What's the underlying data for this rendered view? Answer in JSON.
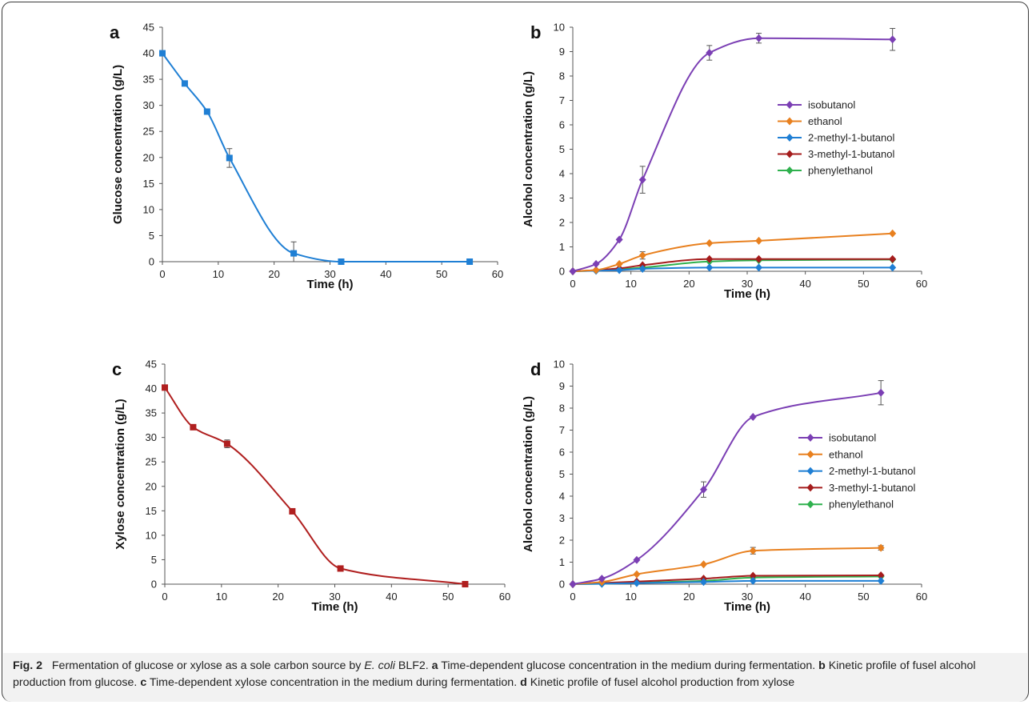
{
  "chart_data": [
    {
      "panel": "a",
      "type": "line",
      "xlabel": "Time (h)",
      "ylabel": "Glucose concentration (g/L)",
      "xlim": [
        0,
        60
      ],
      "xticks": [
        0,
        10,
        20,
        30,
        40,
        50,
        60
      ],
      "ylim": [
        0,
        45
      ],
      "yticks": [
        0,
        5,
        10,
        15,
        20,
        25,
        30,
        35,
        40,
        45
      ],
      "series": [
        {
          "color": "#1f7fd4",
          "marker": "square",
          "x": [
            0,
            4,
            8,
            12,
            23.5,
            32,
            55
          ],
          "y": [
            40,
            34.2,
            28.8,
            19.9,
            1.6,
            0,
            0
          ],
          "err": [
            0,
            0,
            0,
            1.8,
            2.2,
            0,
            0
          ]
        }
      ]
    },
    {
      "panel": "b",
      "type": "line",
      "xlabel": "Time (h)",
      "ylabel": "Alcohol concentration (g/L)",
      "xlim": [
        0,
        60
      ],
      "xticks": [
        0,
        10,
        20,
        30,
        40,
        50,
        60
      ],
      "ylim": [
        0,
        10
      ],
      "yticks": [
        0,
        1,
        2,
        3,
        4,
        5,
        6,
        7,
        8,
        9,
        10
      ],
      "legend_position": "right",
      "series": [
        {
          "name": "isobutanol",
          "color": "#7b3fb4",
          "x": [
            0,
            4,
            8,
            12,
            23.5,
            32,
            55
          ],
          "y": [
            0,
            0.3,
            1.3,
            3.75,
            8.95,
            9.55,
            9.5
          ],
          "err": [
            0,
            0,
            0,
            0.55,
            0.3,
            0.2,
            0.45
          ]
        },
        {
          "name": "ethanol",
          "color": "#e8801f",
          "x": [
            0,
            4,
            8,
            12,
            23.5,
            32,
            55
          ],
          "y": [
            0,
            0.05,
            0.3,
            0.65,
            1.15,
            1.25,
            1.55
          ],
          "err": [
            0,
            0,
            0,
            0.15,
            0,
            0,
            0
          ]
        },
        {
          "name": "2-methyl-1-butanol",
          "color": "#1f7fd4",
          "x": [
            0,
            4,
            8,
            12,
            23.5,
            32,
            55
          ],
          "y": [
            0,
            0.02,
            0.05,
            0.1,
            0.15,
            0.15,
            0.15
          ],
          "err": [
            0,
            0,
            0,
            0,
            0,
            0,
            0
          ]
        },
        {
          "name": "3-methyl-1-butanol",
          "color": "#a51c1c",
          "x": [
            0,
            4,
            8,
            12,
            23.5,
            32,
            55
          ],
          "y": [
            0,
            0.05,
            0.12,
            0.25,
            0.5,
            0.5,
            0.5
          ],
          "err": [
            0,
            0,
            0,
            0,
            0,
            0,
            0
          ]
        },
        {
          "name": "phenylethanol",
          "color": "#2fb14e",
          "x": [
            0,
            4,
            8,
            12,
            23.5,
            32,
            55
          ],
          "y": [
            0,
            0.03,
            0.08,
            0.15,
            0.4,
            0.45,
            0.48
          ],
          "err": [
            0,
            0,
            0,
            0,
            0,
            0,
            0
          ]
        }
      ]
    },
    {
      "panel": "c",
      "type": "line",
      "xlabel": "Time (h)",
      "ylabel": "Xylose concentration (g/L)",
      "xlim": [
        0,
        60
      ],
      "xticks": [
        0,
        10,
        20,
        30,
        40,
        50,
        60
      ],
      "ylim": [
        0,
        45
      ],
      "yticks": [
        0,
        5,
        10,
        15,
        20,
        25,
        30,
        35,
        40,
        45
      ],
      "series": [
        {
          "color": "#b01f1f",
          "marker": "square",
          "x": [
            0,
            5,
            11,
            22.5,
            31,
            53
          ],
          "y": [
            40.2,
            32.1,
            28.7,
            14.9,
            3.2,
            0
          ],
          "err": [
            0,
            0,
            0.8,
            0,
            0,
            0
          ]
        }
      ]
    },
    {
      "panel": "d",
      "type": "line",
      "xlabel": "Time (h)",
      "ylabel": "Alcohol concentration (g/L)",
      "xlim": [
        0,
        60
      ],
      "xticks": [
        0,
        10,
        20,
        30,
        40,
        50,
        60
      ],
      "ylim": [
        0,
        10
      ],
      "yticks": [
        0,
        1,
        2,
        3,
        4,
        5,
        6,
        7,
        8,
        9,
        10
      ],
      "legend_position": "right",
      "series": [
        {
          "name": "isobutanol",
          "color": "#7b3fb4",
          "x": [
            0,
            5,
            11,
            22.5,
            31,
            53
          ],
          "y": [
            0,
            0.25,
            1.1,
            4.3,
            7.6,
            8.7
          ],
          "err": [
            0,
            0,
            0,
            0.35,
            0,
            0.55
          ]
        },
        {
          "name": "ethanol",
          "color": "#e8801f",
          "x": [
            0,
            5,
            11,
            22.5,
            31,
            53
          ],
          "y": [
            0,
            0.1,
            0.45,
            0.9,
            1.52,
            1.65
          ],
          "err": [
            0,
            0,
            0,
            0,
            0.15,
            0.1
          ]
        },
        {
          "name": "2-methyl-1-butanol",
          "color": "#1f7fd4",
          "x": [
            0,
            5,
            11,
            22.5,
            31,
            53
          ],
          "y": [
            0,
            0.02,
            0.05,
            0.1,
            0.15,
            0.15
          ],
          "err": [
            0,
            0,
            0,
            0,
            0,
            0
          ]
        },
        {
          "name": "3-methyl-1-butanol",
          "color": "#a51c1c",
          "x": [
            0,
            5,
            11,
            22.5,
            31,
            53
          ],
          "y": [
            0,
            0.05,
            0.12,
            0.25,
            0.38,
            0.4
          ],
          "err": [
            0,
            0,
            0,
            0,
            0,
            0
          ]
        },
        {
          "name": "phenylethanol",
          "color": "#2fb14e",
          "x": [
            0,
            5,
            11,
            22.5,
            31,
            53
          ],
          "y": [
            0,
            0.02,
            0.07,
            0.15,
            0.3,
            0.35
          ],
          "err": [
            0,
            0,
            0,
            0,
            0,
            0
          ]
        }
      ]
    }
  ],
  "caption": {
    "fig_label": "Fig. 2",
    "intro": "Fermentation of glucose or xylose as a sole carbon source by",
    "organism": "E. coli",
    "intro_end": "BLF2.",
    "a_label": "a",
    "a_text": "Time-dependent glucose concentration in the medium during fermentation.",
    "b_label": "b",
    "b_text": "Kinetic profile of fusel alcohol production from glucose.",
    "c_label": "c",
    "c_text": "Time-dependent xylose concentration in the medium during fermentation.",
    "d_label": "d",
    "d_text": "Kinetic profile of fusel alcohol production from xylose"
  }
}
